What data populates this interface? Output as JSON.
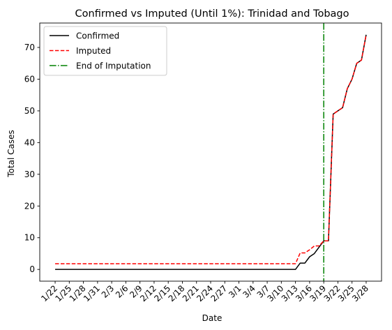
{
  "chart_data": {
    "type": "line",
    "title": "Confirmed vs Imputed (Until 1%): Trinidad and Tobago",
    "xlabel": "Date",
    "ylabel": "Total Cases",
    "ylim": [
      -3.7,
      77.7
    ],
    "yticks": [
      0,
      10,
      20,
      30,
      40,
      50,
      60,
      70
    ],
    "x": [
      "1/22",
      "1/23",
      "1/24",
      "1/25",
      "1/26",
      "1/27",
      "1/28",
      "1/29",
      "1/30",
      "1/31",
      "2/1",
      "2/2",
      "2/3",
      "2/4",
      "2/5",
      "2/6",
      "2/7",
      "2/8",
      "2/9",
      "2/10",
      "2/11",
      "2/12",
      "2/13",
      "2/14",
      "2/15",
      "2/16",
      "2/17",
      "2/18",
      "2/19",
      "2/20",
      "2/21",
      "2/22",
      "2/23",
      "2/24",
      "2/25",
      "2/26",
      "2/27",
      "2/28",
      "2/29",
      "3/1",
      "3/2",
      "3/3",
      "3/4",
      "3/5",
      "3/6",
      "3/7",
      "3/8",
      "3/9",
      "3/10",
      "3/11",
      "3/12",
      "3/13",
      "3/14",
      "3/15",
      "3/16",
      "3/17",
      "3/18",
      "3/19",
      "3/20",
      "3/21",
      "3/22",
      "3/23",
      "3/24",
      "3/25",
      "3/26",
      "3/27",
      "3/28"
    ],
    "xtick_labels": [
      "1/22",
      "1/25",
      "1/28",
      "1/31",
      "2/3",
      "2/6",
      "2/9",
      "2/12",
      "2/15",
      "2/18",
      "2/21",
      "2/24",
      "2/27",
      "3/1",
      "3/4",
      "3/7",
      "3/10",
      "3/13",
      "3/16",
      "3/19",
      "3/22",
      "3/25",
      "3/28"
    ],
    "series": [
      {
        "name": "Confirmed",
        "color": "#000000",
        "style": "solid",
        "values": [
          0,
          0,
          0,
          0,
          0,
          0,
          0,
          0,
          0,
          0,
          0,
          0,
          0,
          0,
          0,
          0,
          0,
          0,
          0,
          0,
          0,
          0,
          0,
          0,
          0,
          0,
          0,
          0,
          0,
          0,
          0,
          0,
          0,
          0,
          0,
          0,
          0,
          0,
          0,
          0,
          0,
          0,
          0,
          0,
          0,
          0,
          0,
          0,
          0,
          0,
          0,
          0,
          2,
          2,
          4,
          5,
          7,
          9,
          9,
          49,
          50,
          51,
          57,
          60,
          65,
          66,
          74
        ]
      },
      {
        "name": "Imputed",
        "color": "#ff0000",
        "style": "dashed",
        "values": [
          1.8,
          1.8,
          1.8,
          1.8,
          1.8,
          1.8,
          1.8,
          1.8,
          1.8,
          1.8,
          1.8,
          1.8,
          1.8,
          1.8,
          1.8,
          1.8,
          1.8,
          1.8,
          1.8,
          1.8,
          1.8,
          1.8,
          1.8,
          1.8,
          1.8,
          1.8,
          1.8,
          1.8,
          1.8,
          1.8,
          1.8,
          1.8,
          1.8,
          1.8,
          1.8,
          1.8,
          1.8,
          1.8,
          1.8,
          1.8,
          1.8,
          1.8,
          1.8,
          1.8,
          1.8,
          1.8,
          1.8,
          1.8,
          1.8,
          1.8,
          1.8,
          1.8,
          5.2,
          5.2,
          6.2,
          7.4,
          7.4,
          9,
          9,
          49,
          50,
          51,
          57,
          60,
          65,
          66,
          74
        ]
      }
    ],
    "vline": {
      "name": "End of Imputation",
      "x": "3/19",
      "color": "#008000",
      "style": "dashdot"
    },
    "legend": [
      "Confirmed",
      "Imputed",
      "End of Imputation"
    ],
    "legend_position": "top-left",
    "grid": false
  }
}
